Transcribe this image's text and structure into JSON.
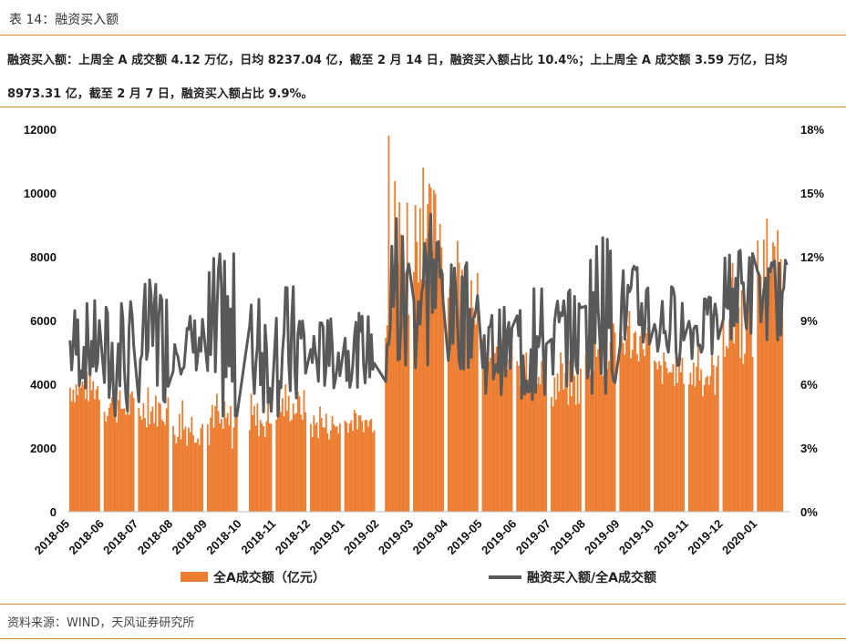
{
  "caption": "表 14：融资买入额",
  "summary": "融资买入额：上周全 A 成交额 4.12 万亿，日均 8237.04 亿，截至 2 月 14 日，融资买入额占比 10.4%；上上周全 A 成交额 3.59 万亿，日均 8973.31 亿，截至 2 月 7 日，融资买入额占比 9.9%。",
  "source": "资料来源：WIND，天风证券研究所",
  "colors": {
    "bar": "#ED7D31",
    "line": "#595959",
    "accent_rule": "#E08A3A"
  },
  "chart_data": {
    "type": "bar",
    "x_tick_labels": [
      "2018-05",
      "2018-06",
      "2018-07",
      "2018-08",
      "2018-09",
      "2018-10",
      "2018-11",
      "2018-12",
      "2019-01",
      "2019-02",
      "2019-03",
      "2019-04",
      "2019-05",
      "2019-06",
      "2019-07",
      "2019-08",
      "2019-09",
      "2019-10",
      "2019-11",
      "2019-12",
      "2020-01"
    ],
    "left_axis": {
      "ticks": [
        "0",
        "2000",
        "4000",
        "6000",
        "8000",
        "10000",
        "12000"
      ],
      "ylim": [
        0,
        12000
      ]
    },
    "right_axis": {
      "ticks": [
        "0%",
        "3%",
        "6%",
        "9%",
        "12%",
        "15%",
        "18%"
      ],
      "ylim": [
        0,
        18
      ]
    },
    "legend_position": "bottom",
    "monthly_summary": [
      {
        "month": "2018-05",
        "bar_avg": 3900,
        "bar_max": 4600,
        "line_avg": 7.8,
        "line_max": 9.8
      },
      {
        "month": "2018-06",
        "bar_avg": 3300,
        "bar_max": 4000,
        "line_avg": 7.0,
        "line_max": 9.8
      },
      {
        "month": "2018-07",
        "bar_avg": 3200,
        "bar_max": 3900,
        "line_avg": 8.0,
        "line_max": 10.7
      },
      {
        "month": "2018-08",
        "bar_avg": 2700,
        "bar_max": 3500,
        "line_avg": 7.9,
        "line_max": 9.2
      },
      {
        "month": "2018-09",
        "bar_avg": 2700,
        "bar_max": 3700,
        "line_avg": 7.4,
        "line_max": 11.8
      },
      {
        "month": "2018-10",
        "bar_avg": 2900,
        "bar_max": 3700,
        "line_avg": 7.4,
        "line_max": 10.0
      },
      {
        "month": "2018-11",
        "bar_avg": 3300,
        "bar_max": 4000,
        "line_avg": 7.6,
        "line_max": 10.6
      },
      {
        "month": "2018-12",
        "bar_avg": 2700,
        "bar_max": 3300,
        "line_avg": 7.4,
        "line_max": 9.0
      },
      {
        "month": "2019-01",
        "bar_avg": 2800,
        "bar_max": 3200,
        "line_avg": 7.6,
        "line_max": 9.2
      },
      {
        "month": "2019-02",
        "bar_avg": 8000,
        "bar_max": 11800,
        "line_avg": 9.5,
        "line_max": 13.8
      },
      {
        "month": "2019-03",
        "bar_avg": 8800,
        "bar_max": 10800,
        "line_avg": 10.3,
        "line_max": 14.0
      },
      {
        "month": "2019-04",
        "bar_avg": 7000,
        "bar_max": 8500,
        "line_avg": 9.2,
        "line_max": 11.5
      },
      {
        "month": "2019-05",
        "bar_avg": 4700,
        "bar_max": 5700,
        "line_avg": 7.6,
        "line_max": 9.5
      },
      {
        "month": "2019-06",
        "bar_avg": 4400,
        "bar_max": 5000,
        "line_avg": 7.7,
        "line_max": 10.5
      },
      {
        "month": "2019-07",
        "bar_avg": 4000,
        "bar_max": 5000,
        "line_avg": 8.2,
        "line_max": 10.3
      },
      {
        "month": "2019-08",
        "bar_avg": 5000,
        "bar_max": 6200,
        "line_avg": 9.4,
        "line_max": 12.9
      },
      {
        "month": "2019-09",
        "bar_avg": 5400,
        "bar_max": 6300,
        "line_avg": 9.5,
        "line_max": 11.5
      },
      {
        "month": "2019-10",
        "bar_avg": 4400,
        "bar_max": 5000,
        "line_avg": 8.8,
        "line_max": 10.6
      },
      {
        "month": "2019-11",
        "bar_avg": 4300,
        "bar_max": 5200,
        "line_avg": 8.6,
        "line_max": 10.0
      },
      {
        "month": "2019-12",
        "bar_avg": 6000,
        "bar_max": 7800,
        "line_avg": 10.3,
        "line_max": 12.3
      },
      {
        "month": "2020-01",
        "bar_avg": 7500,
        "bar_max": 9200,
        "line_avg": 10.0,
        "line_max": 11.8
      }
    ],
    "series": [
      {
        "name": "全A成交额（亿元）",
        "type": "bar",
        "axis": "left",
        "color": "#ED7D31"
      },
      {
        "name": "融资买入额/全A成交额",
        "type": "line",
        "axis": "right",
        "color": "#595959"
      }
    ]
  }
}
